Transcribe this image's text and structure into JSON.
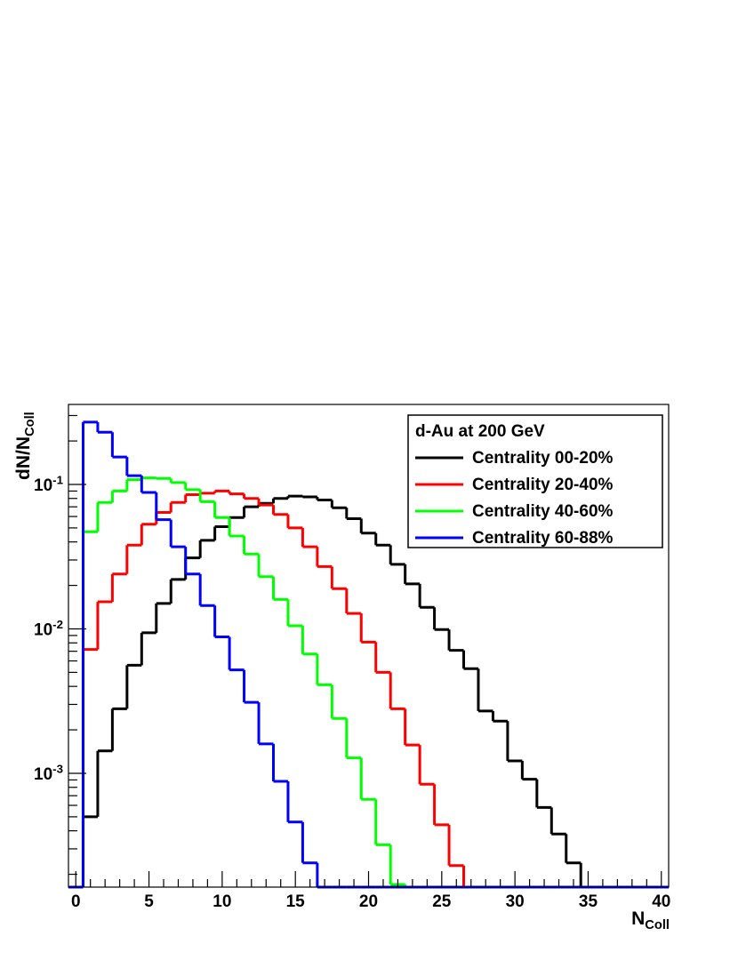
{
  "chart_data": {
    "type": "histogram",
    "x_label": "N_Coll",
    "y_label": "dN/N_Coll",
    "legend_title": "d-Au at 200 GeV",
    "legend_position": "upper right",
    "log_y": true,
    "bins": [
      -0.5,
      0.5,
      1.5,
      2.5,
      3.5,
      4.5,
      5.5,
      6.5,
      7.5,
      8.5,
      9.5,
      10.5,
      11.5,
      12.5,
      13.5,
      14.5,
      15.5,
      16.5,
      17.5,
      18.5,
      19.5,
      20.5,
      21.5,
      22.5,
      23.5,
      24.5,
      25.5,
      26.5,
      27.5,
      28.5,
      29.5,
      30.5,
      31.5,
      32.5,
      33.5,
      34.5,
      35.5,
      36.5,
      37.5,
      38.5,
      39.5,
      40.5
    ],
    "xlim": [
      -0.5,
      40.5
    ],
    "ylim": [
      0.000163,
      0.358
    ],
    "xticks": [
      0,
      5,
      10,
      15,
      20,
      25,
      30,
      35,
      40
    ],
    "xminorticks": [
      1,
      2,
      3,
      4,
      6,
      7,
      8,
      9,
      11,
      12,
      13,
      14,
      16,
      17,
      18,
      19,
      21,
      22,
      23,
      24,
      26,
      27,
      28,
      29,
      31,
      32,
      33,
      34,
      36,
      37,
      38,
      39
    ],
    "yticks": [
      {
        "value": 0.001,
        "label": "10^-3"
      },
      {
        "value": 0.01,
        "label": "10^-2"
      },
      {
        "value": 0.1,
        "label": "10^-1"
      }
    ],
    "yminorticks": [
      0.0002,
      0.0003,
      0.0004,
      0.0005,
      0.0006,
      0.0007,
      0.0008,
      0.0009,
      0.002,
      0.003,
      0.004,
      0.005,
      0.006,
      0.007,
      0.008,
      0.009,
      0.02,
      0.03,
      0.04,
      0.05,
      0.06,
      0.07,
      0.08,
      0.09,
      0.2,
      0.3
    ],
    "series": [
      {
        "name": "Centrality 00-20%",
        "color": "#000000",
        "values": [
          0,
          0.0005,
          0.00143,
          0.0028,
          0.0056,
          0.0094,
          0.015,
          0.022,
          0.031,
          0.041,
          0.051,
          0.059,
          0.07,
          0.074,
          0.08,
          0.083,
          0.082,
          0.078,
          0.069,
          0.058,
          0.046,
          0.038,
          0.028,
          0.0205,
          0.0141,
          0.0099,
          0.0071,
          0.0053,
          0.0027,
          0.0023,
          0.00122,
          0.00091,
          0.00058,
          0.00038,
          0.00024,
          0,
          0,
          0,
          0,
          0,
          0
        ]
      },
      {
        "name": "Centrality 20-40%",
        "color": "#ff0000",
        "values": [
          0,
          0.0072,
          0.0154,
          0.024,
          0.038,
          0.053,
          0.064,
          0.075,
          0.085,
          0.087,
          0.09,
          0.086,
          0.08,
          0.072,
          0.062,
          0.05,
          0.037,
          0.027,
          0.019,
          0.0128,
          0.0081,
          0.005,
          0.0028,
          0.00157,
          0.00084,
          0.00044,
          0.00023,
          0,
          0,
          0,
          0,
          0,
          0,
          0,
          0,
          0,
          0,
          0,
          0,
          0,
          0
        ]
      },
      {
        "name": "Centrality 40-60%",
        "color": "#00ff00",
        "values": [
          0,
          0.047,
          0.075,
          0.09,
          0.108,
          0.111,
          0.11,
          0.103,
          0.092,
          0.076,
          0.059,
          0.044,
          0.033,
          0.023,
          0.016,
          0.0105,
          0.0067,
          0.0041,
          0.0024,
          0.00128,
          0.00066,
          0.00032,
          0.00017,
          0,
          0,
          0,
          0,
          0,
          0,
          0,
          0,
          0,
          0,
          0,
          0,
          0,
          0,
          0,
          0,
          0,
          0
        ]
      },
      {
        "name": "Centrality 60-88%",
        "color": "#0000ff",
        "values": [
          0,
          0.27,
          0.23,
          0.155,
          0.115,
          0.088,
          0.057,
          0.037,
          0.024,
          0.0145,
          0.0088,
          0.0052,
          0.0031,
          0.0016,
          0.00088,
          0.00046,
          0.00024,
          0,
          0,
          0,
          0,
          0,
          0,
          0,
          0,
          0,
          0,
          0,
          0,
          0,
          0,
          0,
          0,
          0,
          0,
          0,
          0,
          0,
          0,
          0,
          0
        ]
      }
    ]
  }
}
